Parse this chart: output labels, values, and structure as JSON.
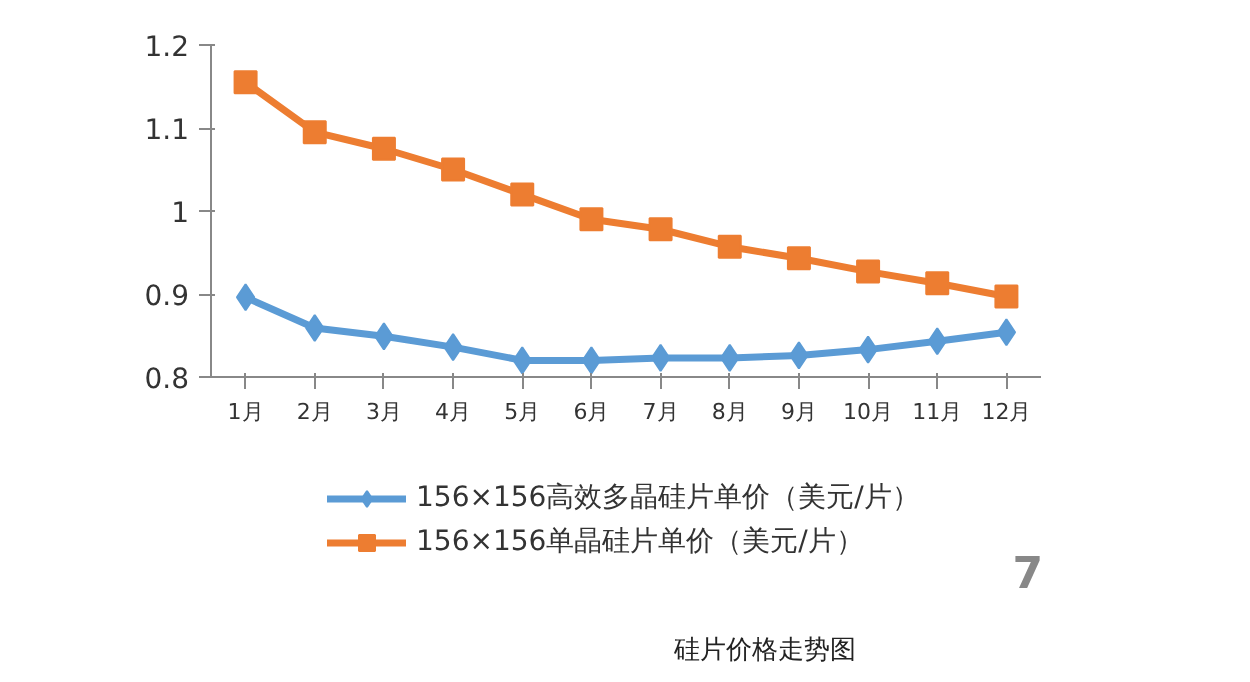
{
  "chart_data": {
    "type": "line",
    "categories": [
      "1月",
      "2月",
      "3月",
      "4月",
      "5月",
      "6月",
      "7月",
      "8月",
      "9月",
      "10月",
      "11月",
      "12月"
    ],
    "series": [
      {
        "name": "156×156高效多晶硅片单价（美元/片）",
        "color": "#5b9bd5",
        "marker": "diamond",
        "values": [
          0.896,
          0.859,
          0.849,
          0.836,
          0.82,
          0.82,
          0.823,
          0.823,
          0.826,
          0.833,
          0.843,
          0.854
        ]
      },
      {
        "name": "156×156单晶硅片单价（美元/片）",
        "color": "#ed7d31",
        "marker": "square",
        "values": [
          1.155,
          1.095,
          1.075,
          1.05,
          1.02,
          0.99,
          0.978,
          0.957,
          0.943,
          0.927,
          0.913,
          0.897
        ]
      }
    ],
    "ylim": [
      0.8,
      1.2
    ],
    "yticks": [
      0.8,
      0.9,
      {
        "value": 1.0,
        "label": "1"
      },
      1.1,
      1.2
    ],
    "grid": false,
    "legend": "bottom",
    "line_style": "solid",
    "annotations": [
      "7",
      "硅片价格走势图"
    ]
  }
}
